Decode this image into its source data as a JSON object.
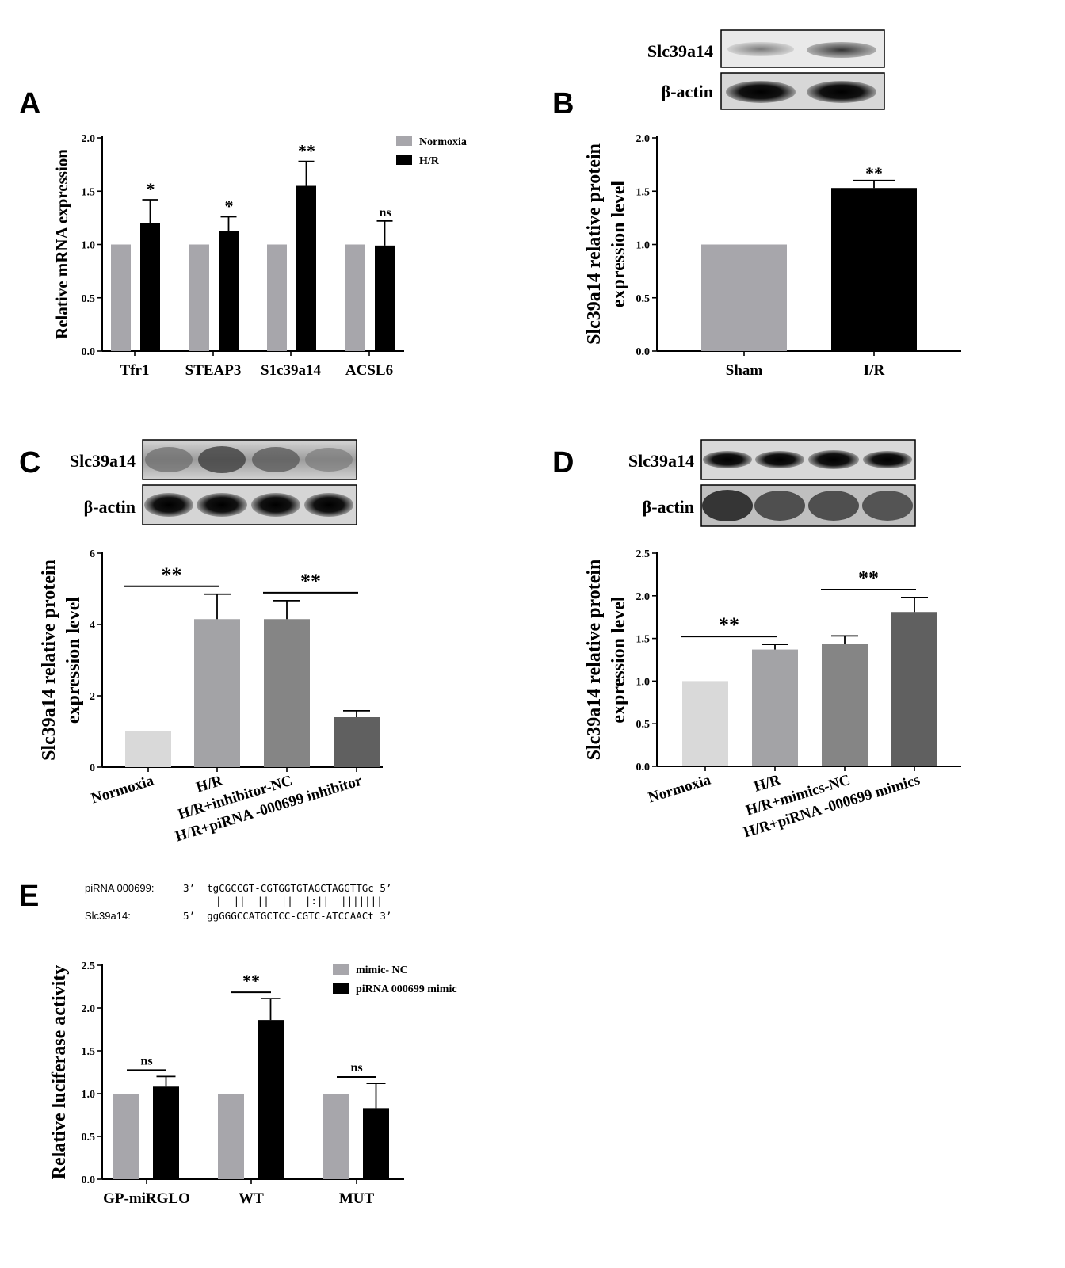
{
  "panels": {
    "A": {
      "letter": "A"
    },
    "B": {
      "letter": "B",
      "blot_labels": [
        "Slc39a14",
        "β-actin"
      ]
    },
    "C": {
      "letter": "C",
      "blot_labels": [
        "Slc39a14",
        "β-actin"
      ]
    },
    "D": {
      "letter": "D",
      "blot_labels": [
        "Slc39a14",
        "β-actin"
      ]
    },
    "E": {
      "letter": "E",
      "alignment": {
        "row1_label": "piRNA 000699:",
        "row1_seq": "3’  tgCGCCGT-CGTGGTGTAGCTAGGTTGc 5’",
        "match_line": "|  ||  ||  ||  |:||  |||||||",
        "row2_label": "Slc39a14:",
        "row2_seq": "5’  ggGGGCCATGCTCC-CGTC-ATCCAACt 3’"
      }
    }
  },
  "colors": {
    "gray": "#a7a6ab",
    "black": "#000000",
    "light": "#d9d9d9",
    "mid": "#a3a3a6",
    "dark_mid": "#858585",
    "dark": "#606060"
  },
  "chart_data": [
    {
      "panel": "A",
      "type": "bar",
      "categories": [
        "Tfr1",
        "STEAP3",
        "S1c39a14",
        "ACSL6"
      ],
      "series": [
        {
          "name": "Normoxia",
          "values": [
            1.0,
            1.0,
            1.0,
            1.0
          ],
          "errors": [
            0,
            0,
            0,
            0
          ]
        },
        {
          "name": "H/R",
          "values": [
            1.2,
            1.13,
            1.55,
            0.99
          ],
          "errors": [
            0.22,
            0.13,
            0.23,
            0.23
          ]
        }
      ],
      "significance": [
        "*",
        "*",
        "**",
        "ns"
      ],
      "ylabel": "Relative mRNA expression",
      "ylim": [
        0,
        2.0
      ],
      "yticks": [
        "0.0",
        "0.5",
        "1.0",
        "1.5",
        "2.0"
      ],
      "legend": "top-right"
    },
    {
      "panel": "B",
      "type": "bar",
      "categories": [
        "Sham",
        "I/R"
      ],
      "values": [
        1.0,
        1.53
      ],
      "errors": [
        0,
        0.07
      ],
      "significance": [
        "",
        "**"
      ],
      "ylabel_lines": [
        "Slc39a14 relative protein",
        "expression level"
      ],
      "ylim": [
        0,
        2.0
      ],
      "yticks": [
        "0.0",
        "0.5",
        "1.0",
        "1.5",
        "2.0"
      ]
    },
    {
      "panel": "C",
      "type": "bar",
      "categories": [
        "Normoxia",
        "H/R",
        "H/R+inhibitor-NC",
        "H/R+piRNA -000699 inhibitor"
      ],
      "values": [
        1.0,
        4.15,
        4.15,
        1.4
      ],
      "errors": [
        0,
        0.7,
        0.52,
        0.18
      ],
      "comparisons": [
        {
          "from": 0,
          "to": 1,
          "label": "**"
        },
        {
          "from": 2,
          "to": 3,
          "label": "**"
        }
      ],
      "ylabel_lines": [
        "Slc39a14 relative protein",
        "expression level"
      ],
      "ylim": [
        0,
        6
      ],
      "yticks": [
        "0",
        "2",
        "4",
        "6"
      ]
    },
    {
      "panel": "D",
      "type": "bar",
      "categories": [
        "Normoxia",
        "H/R",
        "H/R+mimics-NC",
        "H/R+piRNA -000699 mimics"
      ],
      "values": [
        1.0,
        1.37,
        1.44,
        1.81
      ],
      "errors": [
        0,
        0.06,
        0.09,
        0.17
      ],
      "comparisons": [
        {
          "from": 0,
          "to": 1,
          "label": "**"
        },
        {
          "from": 2,
          "to": 3,
          "label": "**"
        }
      ],
      "ylabel_lines": [
        "Slc39a14 relative protein",
        "expression level"
      ],
      "ylim": [
        0,
        2.5
      ],
      "yticks": [
        "0.0",
        "0.5",
        "1.0",
        "1.5",
        "2.0",
        "2.5"
      ]
    },
    {
      "panel": "E",
      "type": "bar",
      "categories": [
        "GP-miRGLO",
        "WT",
        "MUT"
      ],
      "series": [
        {
          "name": "mimic- NC",
          "values": [
            1.0,
            1.0,
            1.0
          ],
          "errors": [
            0,
            0,
            0
          ]
        },
        {
          "name": "piRNA 000699 mimic",
          "values": [
            1.09,
            1.86,
            0.83
          ],
          "errors": [
            0.11,
            0.25,
            0.29
          ]
        }
      ],
      "significance": [
        "ns",
        "**",
        "ns"
      ],
      "ylabel": "Relative luciferase activity",
      "ylim": [
        0,
        2.5
      ],
      "yticks": [
        "0.0",
        "0.5",
        "1.0",
        "1.5",
        "2.0",
        "2.5"
      ],
      "legend": "top-right"
    }
  ]
}
